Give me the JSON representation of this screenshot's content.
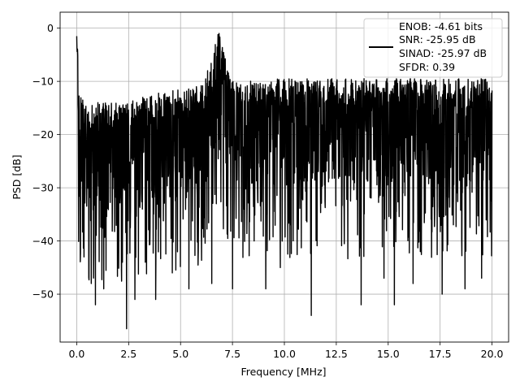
{
  "chart_data": {
    "type": "line",
    "title": "",
    "xlabel": "Frequency [MHz]",
    "ylabel": "PSD [dB]",
    "xlim": [
      -0.8,
      20.8
    ],
    "ylim": [
      -59.0,
      3.0
    ],
    "xticks": [
      0.0,
      2.5,
      5.0,
      7.5,
      10.0,
      12.5,
      15.0,
      17.5,
      20.0
    ],
    "xtick_labels": [
      "0.0",
      "2.5",
      "5.0",
      "7.5",
      "10.0",
      "12.5",
      "15.0",
      "17.5",
      "20.0"
    ],
    "yticks": [
      0,
      -10,
      -20,
      -30,
      -40,
      -50
    ],
    "ytick_labels": [
      "0",
      "−10",
      "−20",
      "−30",
      "−40",
      "−50"
    ],
    "grid": true,
    "legend_position": "top-right",
    "legend_lines": [
      "ENOB: -4.61 bits",
      "SNR: -25.95 dB",
      "SINAD: -25.97 dB",
      "SFDR: 0.39"
    ],
    "series": [
      {
        "color": "#000000",
        "x_range": [
          0.0,
          20.0
        ],
        "dc_peak_db": -2.5,
        "spur": {
          "frequency_mhz": 6.85,
          "level_db": -1.0
        },
        "upper_envelope_db": [
          [
            0.2,
            -12
          ],
          [
            0.5,
            -15
          ],
          [
            1.0,
            -14
          ],
          [
            2.0,
            -14
          ],
          [
            3.0,
            -13
          ],
          [
            4.0,
            -12
          ],
          [
            5.0,
            -11.5
          ],
          [
            6.0,
            -10.5
          ],
          [
            6.8,
            -1.0
          ],
          [
            7.5,
            -10
          ],
          [
            10.0,
            -9.5
          ],
          [
            15.0,
            -9.5
          ],
          [
            20.0,
            -9.5
          ]
        ],
        "deep_nulls_db": [
          [
            0.35,
            -43
          ],
          [
            0.7,
            -48
          ],
          [
            0.9,
            -52
          ],
          [
            1.3,
            -49
          ],
          [
            2.2,
            -44
          ],
          [
            2.4,
            -56.5
          ],
          [
            2.8,
            -51
          ],
          [
            3.3,
            -44
          ],
          [
            3.8,
            -51
          ],
          [
            4.6,
            -46
          ],
          [
            5.4,
            -49
          ],
          [
            6.5,
            -48
          ],
          [
            7.5,
            -49
          ],
          [
            9.1,
            -49
          ],
          [
            9.8,
            -45
          ],
          [
            11.3,
            -54
          ],
          [
            13.7,
            -52
          ],
          [
            14.8,
            -47
          ],
          [
            15.3,
            -52
          ],
          [
            16.2,
            -48
          ],
          [
            17.6,
            -50
          ],
          [
            18.7,
            -49
          ],
          [
            19.5,
            -47
          ]
        ]
      }
    ]
  }
}
